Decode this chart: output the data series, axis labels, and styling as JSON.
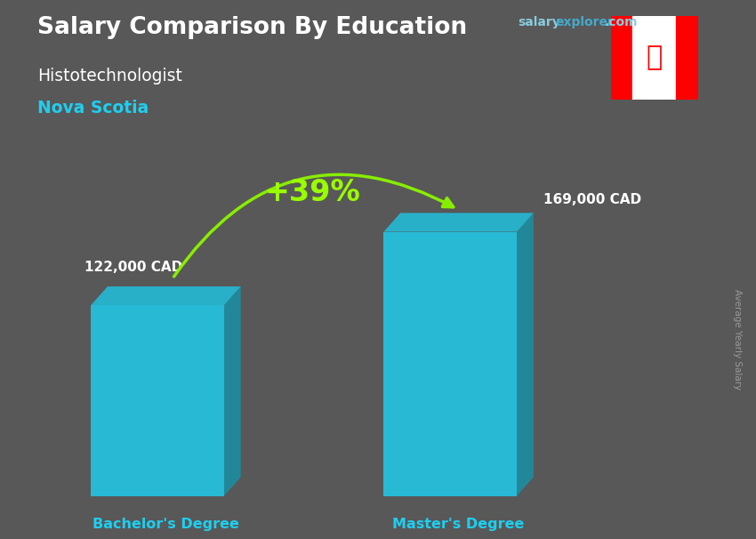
{
  "title_main": "Salary Comparison By Education",
  "subtitle": "Histotechnologist",
  "location": "Nova Scotia",
  "categories": [
    "Bachelor's Degree",
    "Master's Degree"
  ],
  "values": [
    122000,
    169000
  ],
  "value_labels": [
    "122,000 CAD",
    "169,000 CAD"
  ],
  "pct_change": "+39%",
  "bar_color_face": "#1ecff0",
  "bar_color_top": "#25b8d4",
  "bar_color_side": "#1099b0",
  "title_color": "#ffffff",
  "subtitle_color": "#ffffff",
  "location_color": "#1ecff0",
  "xlabel_color": "#1ecff0",
  "value_label_color": "#ffffff",
  "pct_color": "#99ff00",
  "arrow_color": "#88ee00",
  "bg_color": "#606060",
  "ylabel_text": "Average Yearly Salary",
  "ylabel_color": "#aaaaaa",
  "salary_color": "#88ccdd",
  "explorer_color": "#44aacc",
  "dotcom_color": "#88ccdd",
  "fig_bg": "#585858"
}
